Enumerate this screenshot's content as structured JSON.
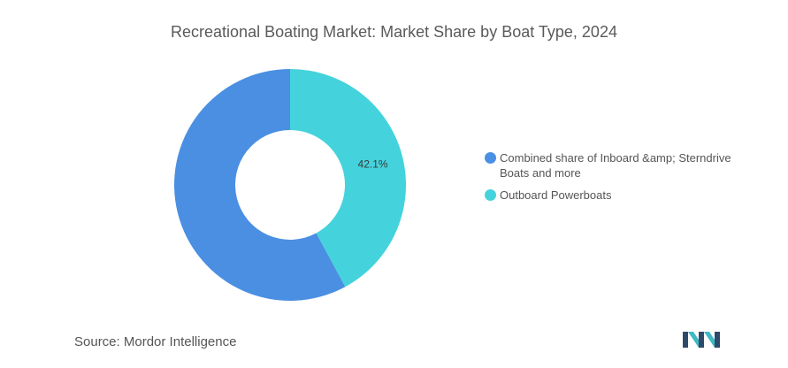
{
  "header": {
    "title": "Recreational Boating Market: Market Share by Boat Type, 2024"
  },
  "chart_data": {
    "type": "pie",
    "style": "donut",
    "title": "Recreational Boating Market: Market Share by Boat Type, 2024",
    "series": [
      {
        "name": "Combined share of Inboard &amp; Sterndrive Boats and more",
        "value": 57.9,
        "color": "#4a8fe2"
      },
      {
        "name": "Outboard Powerboats",
        "value": 42.1,
        "color": "#44d3dc",
        "label": "42.1%"
      }
    ],
    "legend_position": "right"
  },
  "legend": {
    "items": [
      {
        "label": "Combined share of Inboard &amp; Sterndrive Boats and more",
        "color": "#4a8fe2"
      },
      {
        "label": "Outboard Powerboats",
        "color": "#44d3dc"
      }
    ]
  },
  "footer": {
    "source_label": "Source:",
    "source_value": "Mordor Intelligence"
  },
  "logo": {
    "icon": "mordor-intelligence-logo-icon",
    "colors": [
      "#2e4a6b",
      "#3fb9c6"
    ]
  }
}
